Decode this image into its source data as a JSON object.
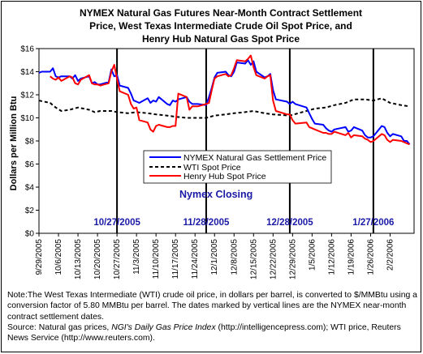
{
  "title_lines": [
    "NYMEX Natural Gas Futures Near-Month Contract Settlement",
    "Price, West Texas Intermediate Crude Oil Spot Price, and",
    "Henry Hub Natural Gas Spot Price"
  ],
  "annotation": "Nymex Closing",
  "vline_labels": [
    "10/27/2005",
    "11/28/2005",
    "12/28/2005",
    "1/27/2006"
  ],
  "note": {
    "text": "Note:The West Texas Intermediate (WTI) crude oil price, in dollars per barrel,  is converted to $/MMBtu using a conversion factor of 5.80 MMBtu per barrel.  The dates marked by vertical lines are the NYMEX near-month contract settlement dates.",
    "source_prefix": "Source: Natural gas prices, ",
    "source_italic": "NGI's Daily Gas Price Index",
    "source_rest": " (http://intelligencepress.com); WTI price, Reuters News Service (http://www.reuters.com)."
  },
  "colors": {
    "nymex": "#0000ff",
    "wti": "#000000",
    "henry_hub": "#ff0000",
    "vline_label": "#1a1aa6"
  },
  "chart_data": {
    "type": "line",
    "title": "NYMEX Natural Gas Futures Near-Month Contract Settlement Price, West Texas Intermediate Crude Oil Spot Price, and Henry Hub Natural Gas Spot Price",
    "ylabel": "Dollars per Million Btu",
    "xlabel": "",
    "ylim": [
      0,
      16
    ],
    "yticks": [
      "$0",
      "$2",
      "$4",
      "$6",
      "$8",
      "$10",
      "$12",
      "$14",
      "$16"
    ],
    "xlim": [
      "2005-09-29",
      "2006-02-09"
    ],
    "xticks": [
      "9/29/2005",
      "10/6/2005",
      "10/13/2005",
      "10/20/2005",
      "10/27/2005",
      "11/3/2005",
      "11/10/2005",
      "11/17/2005",
      "11/24/2005",
      "12/1/2005",
      "12/8/2005",
      "12/15/2005",
      "12/22/2005",
      "12/29/2005",
      "1/5/2006",
      "1/12/2006",
      "1/19/2006",
      "1/26/2006",
      "2/2/2006"
    ],
    "vlines": [
      "2005-10-27",
      "2005-11-28",
      "2005-12-28",
      "2006-01-27"
    ],
    "legend": "center-right",
    "grid": false,
    "series": [
      {
        "name": "NYMEX Natural Gas Settlement Price",
        "style": "solid",
        "points": [
          [
            "2005-09-29",
            13.9
          ],
          [
            "2005-09-30",
            14.0
          ],
          [
            "2005-10-03",
            14.0
          ],
          [
            "2005-10-04",
            14.3
          ],
          [
            "2005-10-05",
            13.6
          ],
          [
            "2005-10-06",
            13.5
          ],
          [
            "2005-10-07",
            13.6
          ],
          [
            "2005-10-10",
            13.6
          ],
          [
            "2005-10-11",
            13.4
          ],
          [
            "2005-10-12",
            13.7
          ],
          [
            "2005-10-13",
            13.2
          ],
          [
            "2005-10-14",
            13.4
          ],
          [
            "2005-10-17",
            13.6
          ],
          [
            "2005-10-18",
            13.0
          ],
          [
            "2005-10-19",
            13.1
          ],
          [
            "2005-10-20",
            12.9
          ],
          [
            "2005-10-21",
            12.9
          ],
          [
            "2005-10-24",
            13.1
          ],
          [
            "2005-10-25",
            14.2
          ],
          [
            "2005-10-26",
            13.6
          ],
          [
            "2005-10-27",
            13.7
          ],
          [
            "2005-10-28",
            12.8
          ],
          [
            "2005-10-31",
            12.6
          ],
          [
            "2005-11-01",
            12.1
          ],
          [
            "2005-11-02",
            11.5
          ],
          [
            "2005-11-03",
            11.4
          ],
          [
            "2005-11-04",
            11.3
          ],
          [
            "2005-11-07",
            11.7
          ],
          [
            "2005-11-08",
            11.3
          ],
          [
            "2005-11-09",
            11.5
          ],
          [
            "2005-11-10",
            11.4
          ],
          [
            "2005-11-11",
            11.8
          ],
          [
            "2005-11-14",
            11.2
          ],
          [
            "2005-11-15",
            11.1
          ],
          [
            "2005-11-16",
            11.5
          ],
          [
            "2005-11-17",
            11.4
          ],
          [
            "2005-11-18",
            11.6
          ],
          [
            "2005-11-21",
            11.8
          ],
          [
            "2005-11-22",
            11.4
          ],
          [
            "2005-11-23",
            11.2
          ],
          [
            "2005-11-25",
            11.2
          ],
          [
            "2005-11-28",
            11.1
          ],
          [
            "2005-11-29",
            11.8
          ],
          [
            "2005-11-30",
            12.6
          ],
          [
            "2005-12-01",
            13.5
          ],
          [
            "2005-12-02",
            13.9
          ],
          [
            "2005-12-05",
            14.0
          ],
          [
            "2005-12-06",
            13.7
          ],
          [
            "2005-12-07",
            13.6
          ],
          [
            "2005-12-08",
            14.0
          ],
          [
            "2005-12-09",
            14.8
          ],
          [
            "2005-12-12",
            14.7
          ],
          [
            "2005-12-13",
            15.0
          ],
          [
            "2005-12-14",
            14.6
          ],
          [
            "2005-12-15",
            14.9
          ],
          [
            "2005-12-16",
            14.0
          ],
          [
            "2005-12-19",
            13.5
          ],
          [
            "2005-12-20",
            13.6
          ],
          [
            "2005-12-21",
            13.8
          ],
          [
            "2005-12-22",
            12.4
          ],
          [
            "2005-12-23",
            11.6
          ],
          [
            "2005-12-27",
            11.4
          ],
          [
            "2005-12-28",
            11.2
          ],
          [
            "2005-12-29",
            11.4
          ],
          [
            "2005-12-30",
            11.2
          ],
          [
            "2006-01-03",
            10.9
          ],
          [
            "2006-01-04",
            10.4
          ],
          [
            "2006-01-05",
            9.9
          ],
          [
            "2006-01-06",
            9.5
          ],
          [
            "2006-01-09",
            9.4
          ],
          [
            "2006-01-10",
            9.1
          ],
          [
            "2006-01-11",
            8.9
          ],
          [
            "2006-01-12",
            8.8
          ],
          [
            "2006-01-13",
            9.0
          ],
          [
            "2006-01-17",
            9.2
          ],
          [
            "2006-01-18",
            8.8
          ],
          [
            "2006-01-19",
            8.9
          ],
          [
            "2006-01-20",
            9.2
          ],
          [
            "2006-01-23",
            8.9
          ],
          [
            "2006-01-24",
            8.5
          ],
          [
            "2006-01-25",
            8.3
          ],
          [
            "2006-01-26",
            8.3
          ],
          [
            "2006-01-27",
            8.4
          ],
          [
            "2006-01-30",
            9.3
          ],
          [
            "2006-01-31",
            9.2
          ],
          [
            "2006-02-01",
            8.7
          ],
          [
            "2006-02-02",
            8.4
          ],
          [
            "2006-02-03",
            8.6
          ],
          [
            "2006-02-06",
            8.4
          ],
          [
            "2006-02-07",
            8.0
          ],
          [
            "2006-02-08",
            8.0
          ],
          [
            "2006-02-09",
            7.7
          ]
        ]
      },
      {
        "name": "WTI Spot Price",
        "style": "dashed",
        "points": [
          [
            "2005-09-29",
            11.5
          ],
          [
            "2005-10-03",
            11.3
          ],
          [
            "2005-10-05",
            10.9
          ],
          [
            "2005-10-07",
            10.6
          ],
          [
            "2005-10-10",
            10.7
          ],
          [
            "2005-10-13",
            10.9
          ],
          [
            "2005-10-17",
            10.7
          ],
          [
            "2005-10-19",
            10.5
          ],
          [
            "2005-10-21",
            10.6
          ],
          [
            "2005-10-25",
            10.6
          ],
          [
            "2005-10-27",
            10.5
          ],
          [
            "2005-10-31",
            10.4
          ],
          [
            "2005-11-03",
            10.5
          ],
          [
            "2005-11-07",
            10.4
          ],
          [
            "2005-11-10",
            10.3
          ],
          [
            "2005-11-14",
            10.2
          ],
          [
            "2005-11-17",
            10.1
          ],
          [
            "2005-11-21",
            10.0
          ],
          [
            "2005-11-24",
            10.0
          ],
          [
            "2005-11-28",
            10.0
          ],
          [
            "2005-12-01",
            10.2
          ],
          [
            "2005-12-05",
            10.3
          ],
          [
            "2005-12-08",
            10.4
          ],
          [
            "2005-12-12",
            10.5
          ],
          [
            "2005-12-15",
            10.6
          ],
          [
            "2005-12-19",
            10.4
          ],
          [
            "2005-12-22",
            10.3
          ],
          [
            "2005-12-28",
            10.2
          ],
          [
            "2006-01-03",
            10.6
          ],
          [
            "2006-01-06",
            10.8
          ],
          [
            "2006-01-10",
            10.9
          ],
          [
            "2006-01-13",
            11.1
          ],
          [
            "2006-01-17",
            11.3
          ],
          [
            "2006-01-20",
            11.6
          ],
          [
            "2006-01-24",
            11.6
          ],
          [
            "2006-01-27",
            11.5
          ],
          [
            "2006-01-30",
            11.7
          ],
          [
            "2006-02-02",
            11.3
          ],
          [
            "2006-02-06",
            11.1
          ],
          [
            "2006-02-09",
            11.0
          ]
        ]
      },
      {
        "name": "Henry Hub Spot Price",
        "style": "solid",
        "points": [
          [
            "2005-10-03",
            13.6
          ],
          [
            "2005-10-04",
            13.4
          ],
          [
            "2005-10-05",
            13.3
          ],
          [
            "2005-10-06",
            13.5
          ],
          [
            "2005-10-07",
            13.2
          ],
          [
            "2005-10-10",
            13.6
          ],
          [
            "2005-10-11",
            13.5
          ],
          [
            "2005-10-12",
            13.0
          ],
          [
            "2005-10-13",
            12.9
          ],
          [
            "2005-10-14",
            13.3
          ],
          [
            "2005-10-17",
            13.7
          ],
          [
            "2005-10-18",
            13.0
          ],
          [
            "2005-10-19",
            12.9
          ],
          [
            "2005-10-20",
            12.9
          ],
          [
            "2005-10-21",
            12.8
          ],
          [
            "2005-10-24",
            13.0
          ],
          [
            "2005-10-25",
            14.0
          ],
          [
            "2005-10-26",
            14.6
          ],
          [
            "2005-10-27",
            13.4
          ],
          [
            "2005-10-28",
            12.3
          ],
          [
            "2005-10-31",
            12.0
          ],
          [
            "2005-11-01",
            11.2
          ],
          [
            "2005-11-02",
            10.8
          ],
          [
            "2005-11-03",
            10.9
          ],
          [
            "2005-11-04",
            9.8
          ],
          [
            "2005-11-07",
            9.6
          ],
          [
            "2005-11-08",
            9.0
          ],
          [
            "2005-11-09",
            8.8
          ],
          [
            "2005-11-10",
            9.3
          ],
          [
            "2005-11-11",
            9.4
          ],
          [
            "2005-11-14",
            9.2
          ],
          [
            "2005-11-15",
            9.2
          ],
          [
            "2005-11-16",
            9.3
          ],
          [
            "2005-11-17",
            9.3
          ],
          [
            "2005-11-18",
            12.1
          ],
          [
            "2005-11-21",
            11.8
          ],
          [
            "2005-11-22",
            10.7
          ],
          [
            "2005-11-23",
            11.0
          ],
          [
            "2005-11-25",
            11.0
          ],
          [
            "2005-11-28",
            11.2
          ],
          [
            "2005-11-29",
            11.3
          ],
          [
            "2005-11-30",
            12.4
          ],
          [
            "2005-12-01",
            13.4
          ],
          [
            "2005-12-02",
            13.6
          ],
          [
            "2005-12-05",
            13.8
          ],
          [
            "2005-12-06",
            13.6
          ],
          [
            "2005-12-07",
            13.7
          ],
          [
            "2005-12-08",
            14.3
          ],
          [
            "2005-12-09",
            15.0
          ],
          [
            "2005-12-12",
            14.9
          ],
          [
            "2005-12-13",
            15.1
          ],
          [
            "2005-12-14",
            15.4
          ],
          [
            "2005-12-15",
            14.4
          ],
          [
            "2005-12-16",
            13.7
          ],
          [
            "2005-12-19",
            13.4
          ],
          [
            "2005-12-20",
            13.6
          ],
          [
            "2005-12-21",
            13.7
          ],
          [
            "2005-12-22",
            11.5
          ],
          [
            "2005-12-23",
            10.6
          ],
          [
            "2005-12-27",
            10.3
          ],
          [
            "2005-12-28",
            10.3
          ],
          [
            "2005-12-29",
            9.8
          ],
          [
            "2005-12-30",
            9.5
          ],
          [
            "2006-01-03",
            9.6
          ],
          [
            "2006-01-04",
            9.2
          ],
          [
            "2006-01-05",
            9.1
          ],
          [
            "2006-01-06",
            9.0
          ],
          [
            "2006-01-09",
            8.7
          ],
          [
            "2006-01-10",
            8.7
          ],
          [
            "2006-01-11",
            8.6
          ],
          [
            "2006-01-12",
            8.6
          ],
          [
            "2006-01-13",
            8.8
          ],
          [
            "2006-01-17",
            8.5
          ],
          [
            "2006-01-18",
            8.7
          ],
          [
            "2006-01-19",
            8.3
          ],
          [
            "2006-01-20",
            8.5
          ],
          [
            "2006-01-23",
            8.4
          ],
          [
            "2006-01-24",
            8.2
          ],
          [
            "2006-01-25",
            8.1
          ],
          [
            "2006-01-26",
            7.9
          ],
          [
            "2006-01-27",
            8.0
          ],
          [
            "2006-01-30",
            8.6
          ],
          [
            "2006-01-31",
            8.5
          ],
          [
            "2006-02-01",
            8.1
          ],
          [
            "2006-02-02",
            7.9
          ],
          [
            "2006-02-03",
            8.1
          ],
          [
            "2006-02-06",
            8.0
          ],
          [
            "2006-02-07",
            7.9
          ],
          [
            "2006-02-08",
            7.8
          ],
          [
            "2006-02-09",
            7.7
          ]
        ]
      }
    ]
  }
}
